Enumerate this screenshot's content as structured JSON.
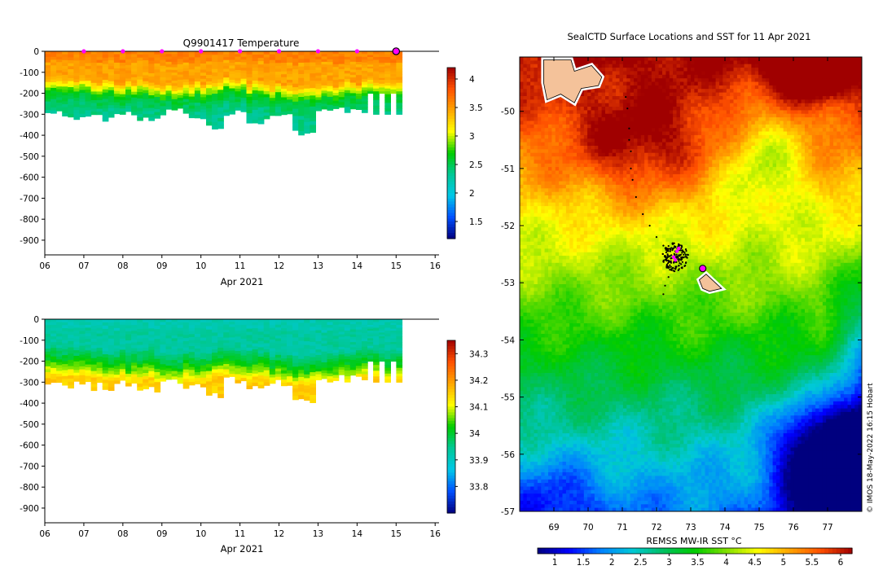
{
  "colors": {
    "sst_ramp": [
      "#00007f",
      "#0000ff",
      "#0080ff",
      "#00c8d8",
      "#00c060",
      "#00cc00",
      "#80e000",
      "#ffff00",
      "#ffa500",
      "#ff5000",
      "#a00000"
    ],
    "temp_ramp": [
      "#00007f",
      "#0050ff",
      "#00c8e8",
      "#00c896",
      "#00cc00",
      "#ffff00",
      "#ffa500",
      "#ff5000",
      "#a00000"
    ],
    "sal_ramp": [
      "#00007f",
      "#0050ff",
      "#00c8e8",
      "#00c896",
      "#00cc00",
      "#ffff00",
      "#ffa500",
      "#ff5000",
      "#a00000"
    ],
    "marker": "#ff00ff",
    "land": "#f4c29a"
  },
  "chart_data": [
    {
      "type": "heatmap",
      "name": "temperature-section",
      "title": "Q9901417  Temperature",
      "xlabel": "Apr 2021",
      "ylabel": "",
      "x_ticks": [
        6,
        7,
        8,
        9,
        10,
        11,
        12,
        13,
        14,
        15,
        16
      ],
      "x_tick_labels": [
        "06",
        "07",
        "08",
        "09",
        "10",
        "11",
        "12",
        "13",
        "14",
        "15",
        "16"
      ],
      "xlim": [
        6,
        16.1
      ],
      "y_ticks": [
        0,
        -100,
        -200,
        -300,
        -400,
        -500,
        -600,
        -700,
        -800,
        -900
      ],
      "y_tick_labels": [
        "0",
        "-100",
        "-200",
        "-300",
        "-400",
        "-500",
        "-600",
        "-700",
        "-800",
        "-900"
      ],
      "ylim": [
        -970,
        0
      ],
      "colorbar": {
        "min": 1.2,
        "max": 4.2,
        "ticks": [
          4,
          3.5,
          3,
          2.5,
          2,
          1.5
        ],
        "tick_labels": [
          "4",
          "3.5",
          "3",
          "2.5",
          "2",
          "1.5"
        ]
      },
      "surface_markers_days": [
        7,
        8,
        9,
        10,
        11,
        12,
        13,
        14
      ],
      "current_day": 15,
      "profiles": {
        "start_day": 6,
        "end_day": 15.15,
        "mixed_layer_depth_m": [
          130,
          135,
          140,
          150,
          145,
          160,
          150,
          140,
          130,
          150,
          160,
          170,
          165,
          150,
          140,
          150
        ],
        "max_depth_m": [
          300,
          310,
          320,
          300,
          330,
          290,
          310,
          360,
          290,
          330,
          300,
          380,
          290,
          280,
          300,
          320
        ],
        "surface_value": 3.6,
        "mixed_value": 3.4,
        "thermocline_value": 2.6,
        "deep_value": 2.35
      }
    },
    {
      "type": "heatmap",
      "name": "salinity-section",
      "title": "",
      "xlabel": "Apr 2021",
      "ylabel": "",
      "x_ticks": [
        6,
        7,
        8,
        9,
        10,
        11,
        12,
        13,
        14,
        15,
        16
      ],
      "x_tick_labels": [
        "06",
        "07",
        "08",
        "09",
        "10",
        "11",
        "12",
        "13",
        "14",
        "15",
        "16"
      ],
      "xlim": [
        6,
        16.1
      ],
      "y_ticks": [
        0,
        -100,
        -200,
        -300,
        -400,
        -500,
        -600,
        -700,
        -800,
        -900
      ],
      "y_tick_labels": [
        "0",
        "-100",
        "-200",
        "-300",
        "-400",
        "-500",
        "-600",
        "-700",
        "-800",
        "-900"
      ],
      "ylim": [
        -970,
        0
      ],
      "colorbar": {
        "min": 33.7,
        "max": 34.35,
        "ticks": [
          34.3,
          34.2,
          34.1,
          34,
          33.9,
          33.8
        ],
        "tick_labels": [
          "34.3",
          "34.2",
          "34.1",
          "34",
          "33.9",
          "33.8"
        ]
      },
      "profiles": {
        "surface_value": 33.92,
        "mixed_value": 33.94,
        "thermocline_value": 34.02,
        "deep_value": 34.15
      }
    },
    {
      "type": "heatmap",
      "name": "sst-map",
      "title": "SealCTD Surface Locations and SST for 11 Apr 2021",
      "xlabel": "",
      "colorbar_label": "REMSS MW-IR SST °C",
      "x_ticks": [
        69,
        70,
        71,
        72,
        73,
        74,
        75,
        76,
        77
      ],
      "x_tick_labels": [
        "69",
        "70",
        "71",
        "72",
        "73",
        "74",
        "75",
        "76",
        "77"
      ],
      "xlim": [
        68,
        78
      ],
      "y_ticks": [
        -50,
        -51,
        -52,
        -53,
        -54,
        -55,
        -56,
        -57
      ],
      "y_tick_labels": [
        "-50",
        "-51",
        "-52",
        "-53",
        "-54",
        "-55",
        "-56",
        "-57"
      ],
      "ylim": [
        -57,
        -49.05
      ],
      "colorbar": {
        "min": 0.7,
        "max": 6.2,
        "ticks": [
          1,
          1.5,
          2,
          2.5,
          3,
          3.5,
          4,
          4.5,
          5,
          5.5,
          6
        ],
        "tick_labels": [
          "1",
          "1.5",
          "2",
          "2.5",
          "3",
          "3.5",
          "4",
          "4.5",
          "5",
          "5.5",
          "6"
        ]
      },
      "track_points": [
        [
          71.1,
          -49.75
        ],
        [
          71.15,
          -49.95
        ],
        [
          71.2,
          -50.3
        ],
        [
          71.2,
          -50.5
        ],
        [
          71.25,
          -50.7
        ],
        [
          71.25,
          -51.0
        ],
        [
          71.3,
          -51.2
        ],
        [
          71.4,
          -51.5
        ],
        [
          71.6,
          -51.8
        ],
        [
          71.8,
          -52.0
        ],
        [
          72.0,
          -52.2
        ],
        [
          72.2,
          -52.35
        ],
        [
          72.4,
          -52.45
        ],
        [
          72.3,
          -52.7
        ],
        [
          72.35,
          -52.9
        ],
        [
          72.25,
          -53.05
        ],
        [
          72.2,
          -53.2
        ]
      ],
      "cluster_center": [
        72.55,
        -52.55
      ],
      "last_locations": [
        [
          72.6,
          -52.45
        ],
        [
          72.5,
          -52.55
        ],
        [
          72.65,
          -52.4
        ],
        [
          72.55,
          -52.6
        ]
      ],
      "float_position": [
        73.35,
        -52.75
      ],
      "credit": "© IMOS 18-May-2022 16:15 Hobart"
    }
  ]
}
